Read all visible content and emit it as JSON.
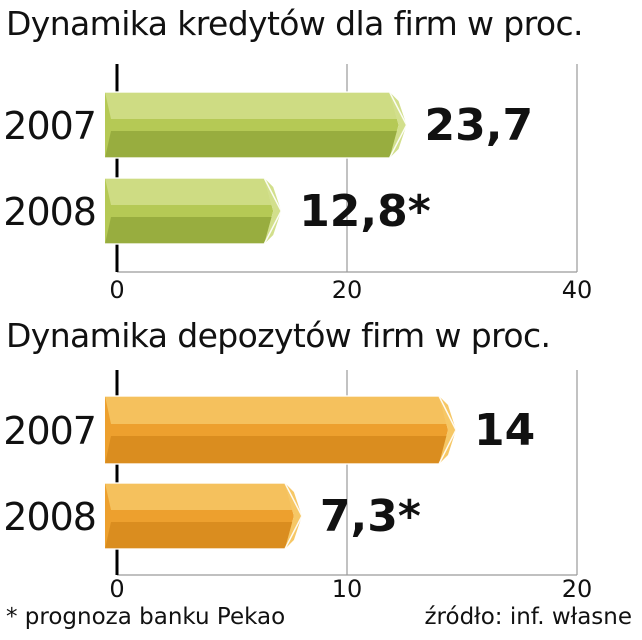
{
  "chart_data": [
    {
      "type": "bar",
      "orientation": "horizontal",
      "title": "Dynamika kredytów dla firm w proc.",
      "categories": [
        "2007",
        "2008"
      ],
      "values": [
        23.7,
        12.8
      ],
      "value_labels": [
        "23,7",
        "12,8*"
      ],
      "xlim": [
        0,
        40
      ],
      "xticks": [
        "0",
        "20",
        "40"
      ],
      "grid": true,
      "bar_color": "#b5c955",
      "bar_color_light": "#d2df8c",
      "bar_color_dark": "#93a83c"
    },
    {
      "type": "bar",
      "orientation": "horizontal",
      "title": "Dynamika depozytów firm w proc.",
      "categories": [
        "2007",
        "2008"
      ],
      "values": [
        14,
        7.3
      ],
      "value_labels": [
        "14",
        "7,3*"
      ],
      "xlim": [
        0,
        20
      ],
      "xticks": [
        "0",
        "10",
        "20"
      ],
      "grid": true,
      "bar_color": "#eda02e",
      "bar_color_light": "#f6c765",
      "bar_color_dark": "#d68a1c"
    }
  ],
  "footnote": "* prognoza banku Pekao",
  "source": "źródło: inf. własne"
}
